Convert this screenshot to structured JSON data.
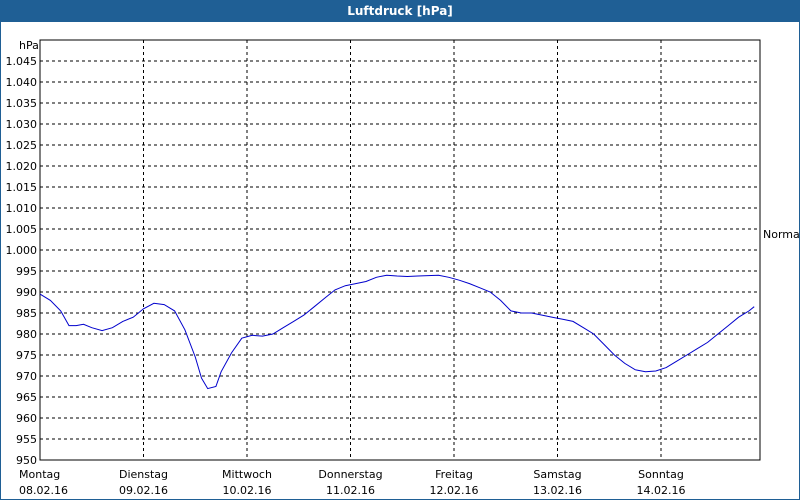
{
  "window": {
    "title": "Luftdruck [hPa]"
  },
  "chart_data": {
    "type": "line",
    "title": "Luftdruck [hPa]",
    "ylabel": "hPa",
    "ylim": [
      950,
      1050
    ],
    "yticks": [
      950,
      955,
      960,
      965,
      970,
      975,
      980,
      985,
      990,
      995,
      1000,
      1005,
      1010,
      1015,
      1020,
      1025,
      1030,
      1035,
      1040,
      1045
    ],
    "ytick_labels": [
      "950",
      "955",
      "960",
      "965",
      "970",
      "975",
      "980",
      "985",
      "990",
      "995",
      "1.000",
      "1.005",
      "1.010",
      "1.015",
      "1.020",
      "1.025",
      "1.030",
      "1.035",
      "1.040",
      "1.045"
    ],
    "x_categories": [
      {
        "day": "Montag",
        "date": "08.02.16"
      },
      {
        "day": "Dienstag",
        "date": "09.02.16"
      },
      {
        "day": "Mittwoch",
        "date": "10.02.16"
      },
      {
        "day": "Donnerstag",
        "date": "11.02.16"
      },
      {
        "day": "Freitag",
        "date": "12.02.16"
      },
      {
        "day": "Samstag",
        "date": "13.02.16"
      },
      {
        "day": "Sonntag",
        "date": "14.02.16"
      }
    ],
    "grid": true,
    "annotation": {
      "text": "Normal"
    },
    "series_color": "#0000cc",
    "series": [
      {
        "values": [
          [
            0.0,
            989.5
          ],
          [
            0.1,
            988.0
          ],
          [
            0.2,
            985.5
          ],
          [
            0.28,
            982.0
          ],
          [
            0.35,
            982.0
          ],
          [
            0.42,
            982.3
          ],
          [
            0.5,
            981.5
          ],
          [
            0.6,
            980.8
          ],
          [
            0.7,
            981.5
          ],
          [
            0.8,
            983.0
          ],
          [
            0.9,
            984.0
          ],
          [
            1.0,
            986.0
          ],
          [
            1.1,
            987.3
          ],
          [
            1.2,
            987.0
          ],
          [
            1.3,
            985.5
          ],
          [
            1.4,
            981.0
          ],
          [
            1.5,
            974.5
          ],
          [
            1.56,
            969.5
          ],
          [
            1.62,
            967.0
          ],
          [
            1.7,
            967.5
          ],
          [
            1.75,
            971.0
          ],
          [
            1.85,
            975.5
          ],
          [
            1.95,
            979.0
          ],
          [
            2.05,
            979.7
          ],
          [
            2.15,
            979.5
          ],
          [
            2.25,
            980.0
          ],
          [
            2.35,
            981.5
          ],
          [
            2.45,
            983.0
          ],
          [
            2.55,
            984.5
          ],
          [
            2.65,
            986.5
          ],
          [
            2.75,
            988.5
          ],
          [
            2.85,
            990.5
          ],
          [
            2.95,
            991.5
          ],
          [
            3.05,
            992.0
          ],
          [
            3.15,
            992.5
          ],
          [
            3.25,
            993.5
          ],
          [
            3.35,
            994.0
          ],
          [
            3.45,
            993.8
          ],
          [
            3.55,
            993.7
          ],
          [
            3.65,
            993.8
          ],
          [
            3.75,
            993.9
          ],
          [
            3.85,
            994.0
          ],
          [
            3.95,
            993.5
          ],
          [
            4.05,
            992.8
          ],
          [
            4.15,
            992.0
          ],
          [
            4.25,
            991.0
          ],
          [
            4.35,
            990.0
          ],
          [
            4.45,
            988.0
          ],
          [
            4.55,
            985.5
          ],
          [
            4.65,
            985.0
          ],
          [
            4.75,
            985.0
          ],
          [
            4.85,
            984.5
          ],
          [
            4.95,
            984.0
          ],
          [
            5.05,
            983.5
          ],
          [
            5.15,
            983.0
          ],
          [
            5.25,
            981.5
          ],
          [
            5.35,
            980.0
          ],
          [
            5.45,
            977.5
          ],
          [
            5.55,
            975.0
          ],
          [
            5.65,
            973.0
          ],
          [
            5.75,
            971.5
          ],
          [
            5.85,
            971.0
          ],
          [
            5.95,
            971.2
          ],
          [
            6.05,
            972.0
          ],
          [
            6.15,
            973.5
          ],
          [
            6.25,
            975.0
          ],
          [
            6.35,
            976.5
          ],
          [
            6.45,
            978.0
          ],
          [
            6.55,
            980.0
          ],
          [
            6.65,
            982.0
          ],
          [
            6.75,
            984.0
          ],
          [
            6.85,
            985.5
          ],
          [
            6.9,
            986.5
          ]
        ]
      }
    ]
  }
}
